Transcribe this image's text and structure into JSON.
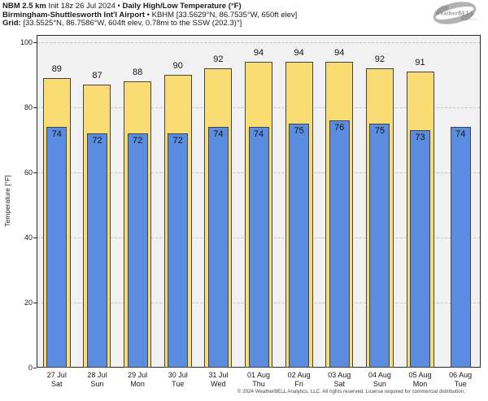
{
  "header": {
    "l1_bold_a": "NBM 2.5 km",
    "l1_reg": " Init 18z 26 Jul 2024 • ",
    "l1_bold_b": "Daily High/Low Temperature (°F)",
    "l2_bold": "Birmingham-Shuttlesworth Int'l Airport",
    "l2_reg": " • KBHM [33.5629°N, 86.7535°W, 650ft elev]",
    "l3_bold": "Grid:",
    "l3_reg": " [33.5525°N, 86.7586°W, 604ft elev, 0.78mi to the SSW (202.3)°]"
  },
  "logo": {
    "brand": "WeatherBELL",
    "tagline": "Analytics LLC"
  },
  "chart_data": {
    "type": "bar",
    "title": "NBM 2.5 km Init 18z 26 Jul 2024 • Daily High/Low Temperature (°F)",
    "subtitle": "Birmingham-Shuttlesworth Int'l Airport • KBHM [33.5629°N, 86.7535°W, 650ft elev]",
    "grid_point": "Grid: [33.5525°N, 86.7586°W, 604ft elev, 0.78mi to the SSW (202.3)°]",
    "ylabel": "Temperature [°F]",
    "ylim": [
      0,
      102
    ],
    "yticks": [
      0,
      20,
      40,
      60,
      80,
      100
    ],
    "grid": "horizontal dashed at yticks",
    "legend": "none",
    "categories": [
      [
        "27 Jul",
        "Sat"
      ],
      [
        "28 Jul",
        "Sun"
      ],
      [
        "29 Jul",
        "Mon"
      ],
      [
        "30 Jul",
        "Tue"
      ],
      [
        "31 Jul",
        "Wed"
      ],
      [
        "01 Aug",
        "Thu"
      ],
      [
        "02 Aug",
        "Fri"
      ],
      [
        "03 Aug",
        "Sat"
      ],
      [
        "04 Aug",
        "Sun"
      ],
      [
        "05 Aug",
        "Mon"
      ],
      [
        "06 Aug",
        "Tue"
      ]
    ],
    "series": [
      {
        "name": "Daily High",
        "color": "#f9dc73",
        "values": [
          89,
          87,
          88,
          90,
          92,
          94,
          94,
          94,
          92,
          91,
          null
        ]
      },
      {
        "name": "Daily Low",
        "color": "#5a8cdf",
        "values": [
          74,
          72,
          72,
          72,
          74,
          74,
          75,
          76,
          75,
          73,
          74
        ]
      }
    ]
  },
  "footer": {
    "copyright": "© 2024 WeatherBELL Analytics, LLC. All rights reserved. License required for commercial distribution."
  },
  "colors": {
    "high_fill": "#f9dc73",
    "low_fill": "#5a8cdf",
    "bar_border": "#454545",
    "plot_bg": "#f1f1f1",
    "axis": "#2b2b2b",
    "gridline": "#c6c6c6",
    "logo_gray": "#a8a8a8"
  }
}
